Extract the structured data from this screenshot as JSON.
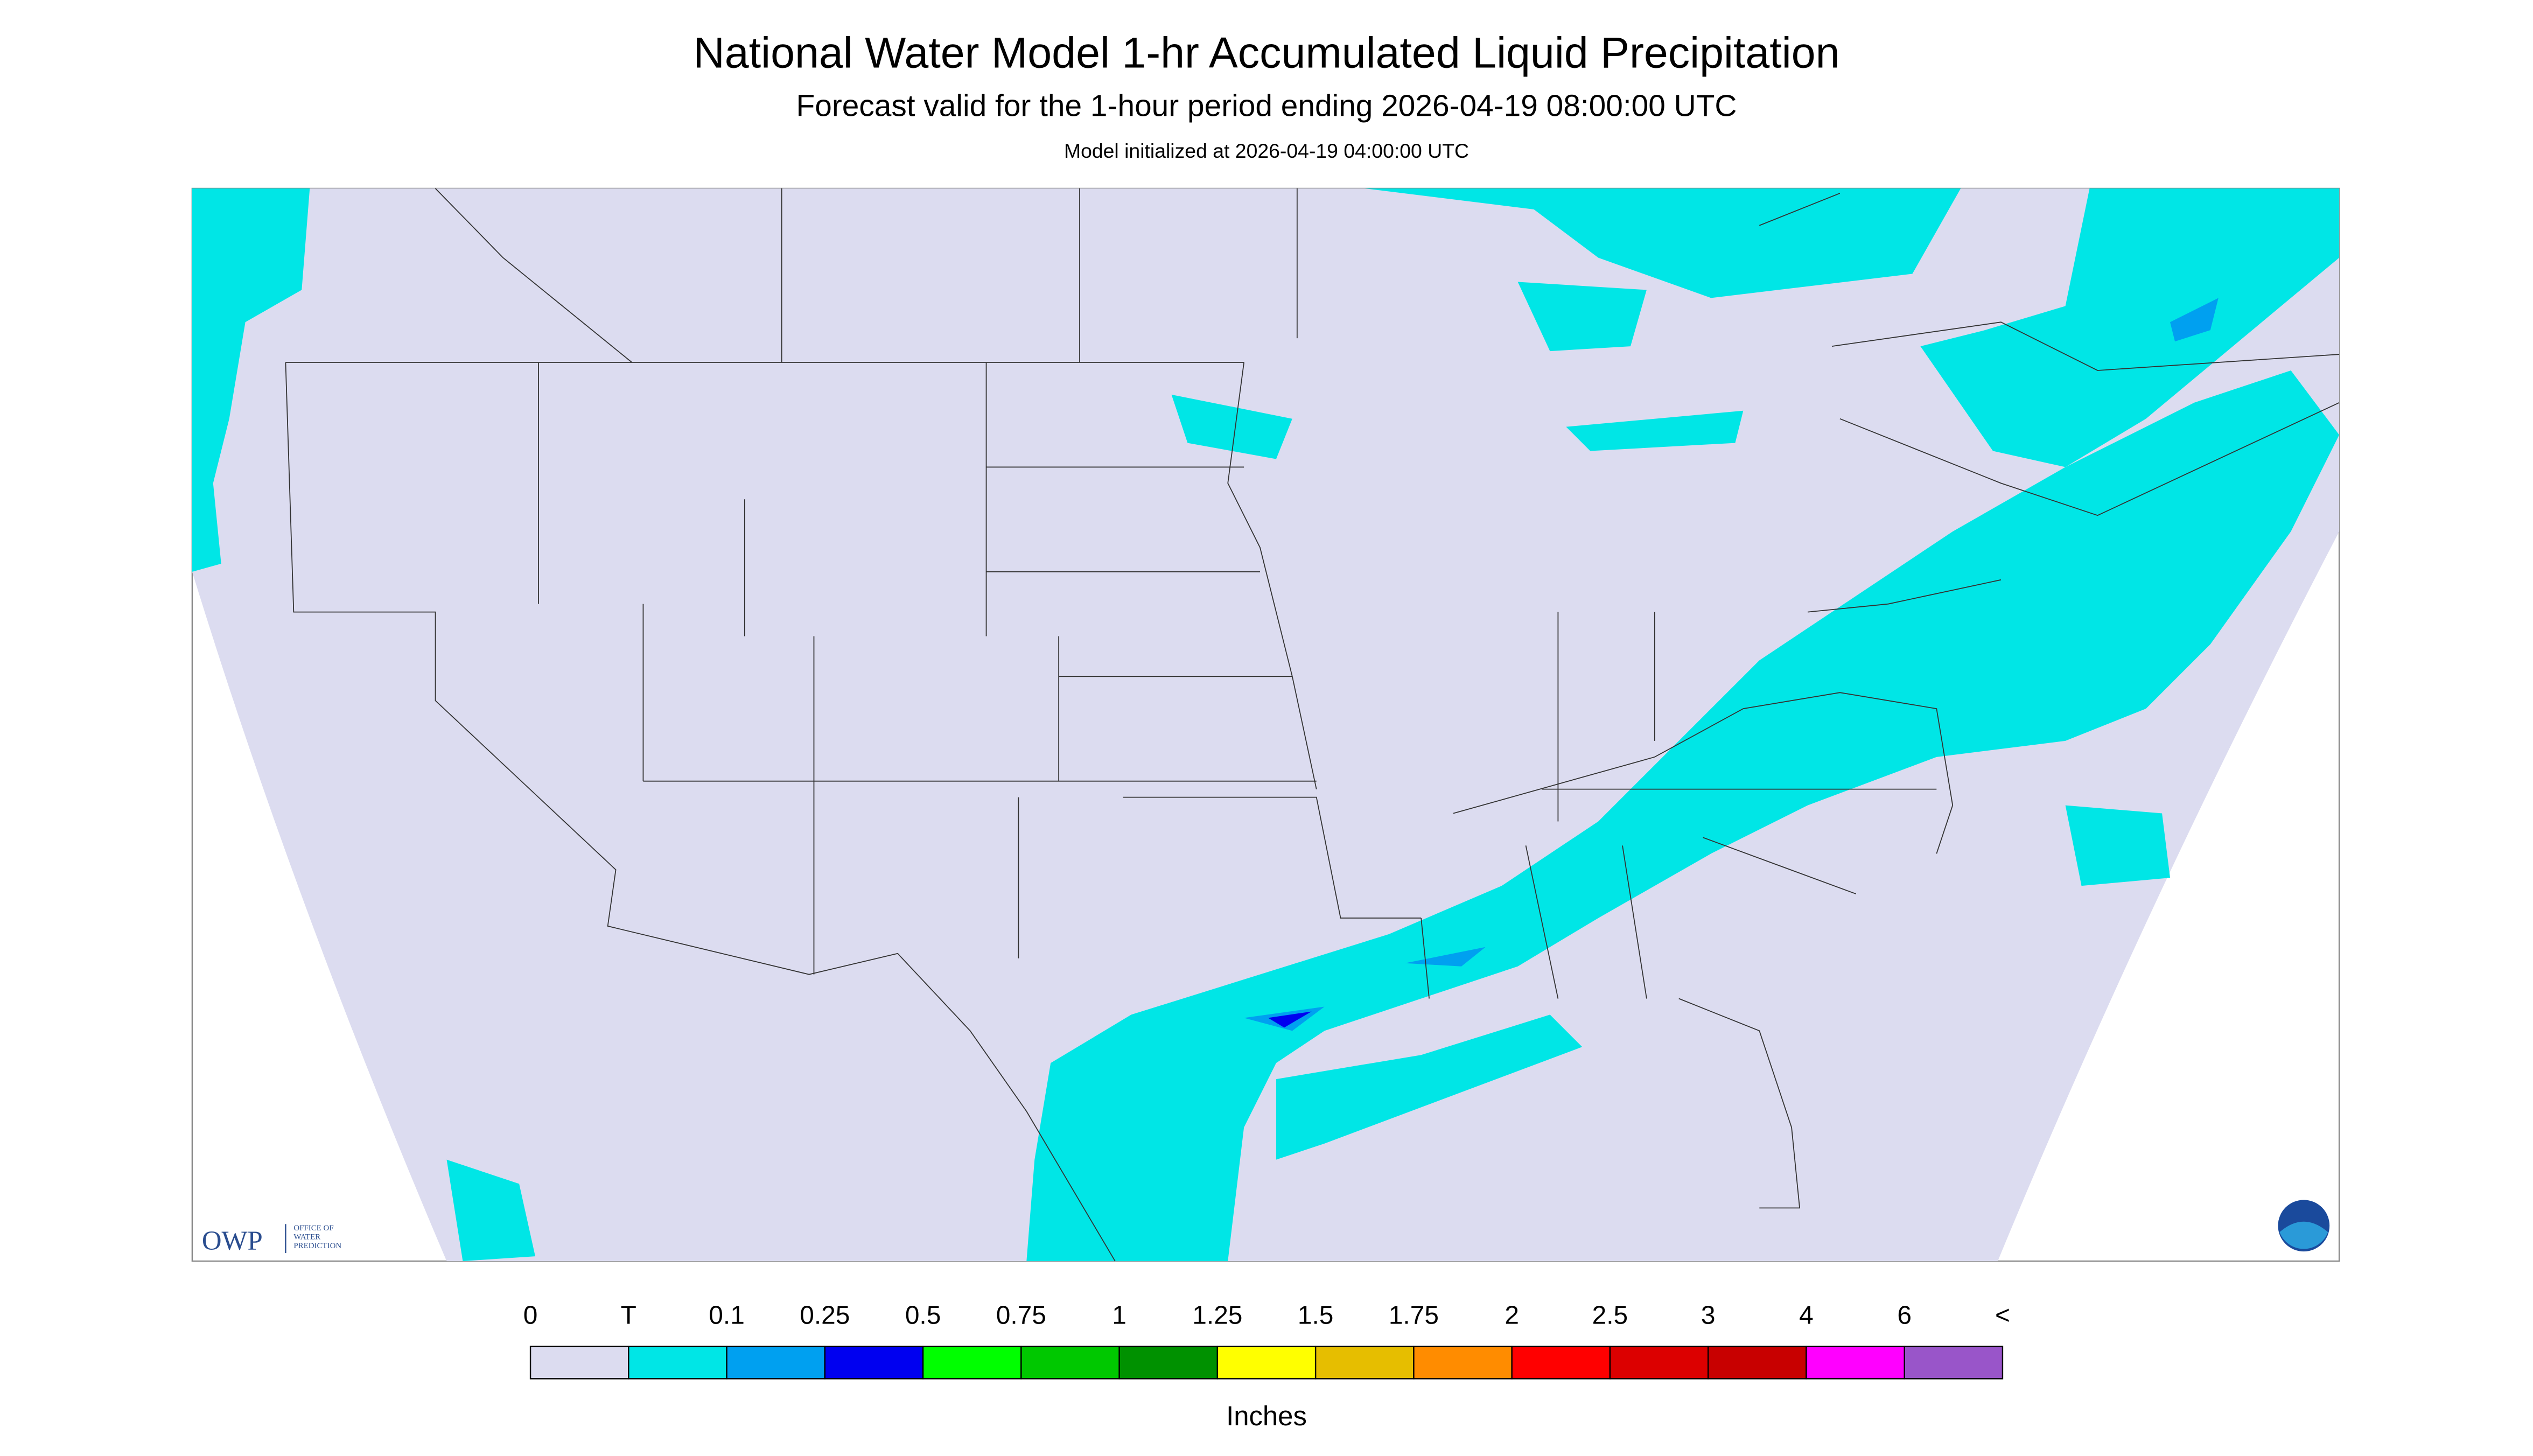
{
  "header": {
    "title": "National Water Model 1-hr Accumulated Liquid Precipitation",
    "subtitle": "Forecast valid for the 1-hour period ending 2026-04-19 08:00:00 UTC",
    "init": "Model initialized at 2026-04-19 04:00:00 UTC"
  },
  "legend": {
    "labels": [
      "0",
      "T",
      "0.1",
      "0.25",
      "0.5",
      "0.75",
      "1",
      "1.25",
      "1.5",
      "1.75",
      "2",
      "2.5",
      "3",
      "4",
      "6",
      "<"
    ],
    "colors": [
      "#dcdcf0",
      "#00e6e6",
      "#00a0f0",
      "#0000f0",
      "#00ff00",
      "#00c800",
      "#009100",
      "#ffff00",
      "#e6be00",
      "#ff8c00",
      "#ff0000",
      "#dc0000",
      "#c80000",
      "#ff00ff",
      "#9955c9"
    ],
    "unit": "Inches"
  },
  "logo": {
    "abbr": "OWP",
    "lines": [
      "OFFICE OF",
      "WATER",
      "PREDICTION"
    ]
  }
}
